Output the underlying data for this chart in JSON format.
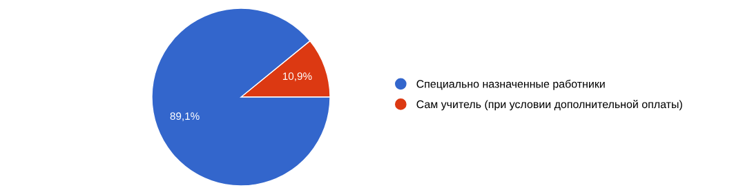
{
  "chart_data": {
    "type": "pie",
    "categories": [
      "Специально назначенные работники",
      "Сам учитель (при условии дополнительной оплаты)"
    ],
    "values": [
      89.1,
      10.9
    ],
    "colors": [
      "#3366cc",
      "#dc3912"
    ],
    "value_labels": [
      "89,1%",
      "10,9%"
    ],
    "legend": "right"
  }
}
